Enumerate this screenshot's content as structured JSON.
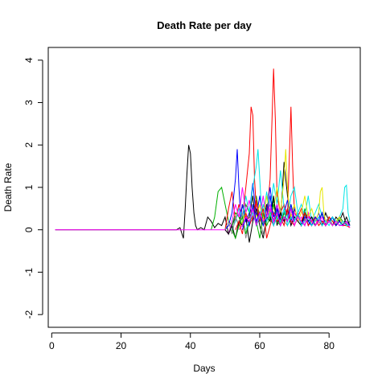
{
  "chart_data": {
    "type": "line",
    "title": "Death Rate per day",
    "xlabel": "Days",
    "ylabel": "Death Rate",
    "xlim": [
      -1,
      89
    ],
    "ylim": [
      -2.3,
      4.3
    ],
    "x_ticks": [
      0,
      20,
      40,
      60,
      80
    ],
    "y_ticks": [
      -2,
      -1,
      0,
      1,
      2,
      3,
      4
    ],
    "x_tick_labels": [
      "0",
      "20",
      "40",
      "60",
      "80"
    ],
    "y_tick_labels": [
      "-2",
      "-1",
      "0",
      "1",
      "2",
      "3",
      "4"
    ],
    "grid": false,
    "legend": "none",
    "series": [
      {
        "color": "#000000",
        "x": [
          1,
          36,
          37,
          38,
          38.5,
          39,
          39.5,
          40,
          40.5,
          41,
          41.5,
          42,
          43,
          44,
          45,
          46,
          47,
          48,
          49,
          50,
          51,
          52,
          53,
          54,
          55,
          56,
          57,
          58,
          59,
          60,
          61,
          62,
          63,
          64,
          65,
          66,
          67,
          68,
          69,
          70,
          71,
          72,
          73,
          74,
          75,
          76,
          77,
          78,
          79,
          80,
          81,
          82,
          83,
          84,
          85,
          86
        ],
        "y": [
          0,
          0,
          0.05,
          -0.2,
          0.5,
          1.3,
          2.0,
          1.8,
          1.0,
          0.4,
          0.1,
          0,
          0.05,
          0,
          0.3,
          0.2,
          0.05,
          0.15,
          0.1,
          0.3,
          -0.1,
          0.1,
          0.3,
          0.1,
          0.6,
          0.2,
          0.3,
          0.8,
          0.1,
          0.4,
          0.2,
          0.6,
          0.3,
          0.1,
          0.5,
          0.2,
          1.6,
          0.8,
          0.3,
          0.2,
          0.4,
          0.1,
          0.3,
          0.2,
          0.1,
          0.3,
          0.2,
          0.1,
          0.4,
          0.2,
          0.1,
          0.3,
          0.2,
          0.4,
          0.1,
          0.2
        ]
      },
      {
        "color": "#00b000",
        "x": [
          46,
          47,
          48,
          49,
          50,
          51,
          52,
          53,
          54,
          55,
          56,
          57,
          58,
          59,
          60,
          61,
          62,
          63,
          64,
          65,
          66,
          67,
          68,
          69,
          70,
          71,
          72,
          73,
          74,
          75,
          76,
          77,
          78,
          79,
          80,
          81,
          82,
          83,
          84,
          85,
          86
        ],
        "y": [
          0,
          0.3,
          0.9,
          1.0,
          0.6,
          0.2,
          0.1,
          0.4,
          0.3,
          0.1,
          0.6,
          0.4,
          0.2,
          0.8,
          0.3,
          0.1,
          0.5,
          0.2,
          0.7,
          0.3,
          0.1,
          0.4,
          0.2,
          0.6,
          0.3,
          0.2,
          0.1,
          0.5,
          0.2,
          0.3,
          0.1,
          0.2,
          0.4,
          0.1,
          0.3,
          0.2,
          0.1,
          0.3,
          0.2,
          0.1,
          0.2
        ]
      },
      {
        "color": "#ff0000",
        "x": [
          50,
          51,
          52,
          53,
          54,
          55,
          56,
          57,
          57.5,
          58,
          58.5,
          59,
          60,
          61,
          62,
          63,
          63.5,
          64,
          64.5,
          65,
          66,
          67,
          68,
          68.5,
          69,
          69.5,
          70,
          71,
          72,
          73,
          74,
          75,
          76,
          77,
          78,
          79,
          80,
          81,
          82,
          83,
          84,
          85,
          86
        ],
        "y": [
          0,
          0.5,
          0.9,
          0.2,
          0.6,
          0.3,
          1.0,
          1.8,
          2.9,
          2.7,
          1.2,
          0.5,
          0.2,
          0.6,
          0.3,
          1.2,
          2.5,
          3.8,
          2.6,
          0.8,
          0.4,
          0.6,
          0.3,
          1.6,
          2.9,
          1.5,
          0.4,
          0.3,
          0.5,
          0.2,
          0.4,
          0.1,
          0.3,
          0.2,
          0.4,
          0.1,
          0.3,
          0.2,
          0.1,
          0.2,
          0.1,
          0.2,
          0.1
        ]
      },
      {
        "color": "#0000ff",
        "x": [
          50,
          51,
          52,
          53,
          53.5,
          54,
          54.5,
          55,
          56,
          57,
          58,
          59,
          60,
          61,
          62,
          63,
          64,
          65,
          66,
          67,
          68,
          69,
          70,
          71,
          72,
          73,
          74,
          75,
          76,
          77,
          78,
          79,
          80,
          81,
          82,
          83,
          84,
          85,
          86
        ],
        "y": [
          0,
          0.1,
          0.4,
          1.2,
          1.9,
          1.0,
          0.3,
          0.6,
          0.2,
          0.4,
          1.1,
          0.3,
          0.8,
          0.2,
          0.5,
          1.0,
          0.3,
          0.6,
          0.2,
          0.4,
          0.7,
          0.2,
          0.5,
          0.3,
          0.2,
          0.4,
          0.1,
          0.3,
          0.2,
          0.4,
          0.1,
          0.2,
          0.3,
          0.1,
          0.2,
          0.3,
          0.1,
          0.2,
          0.1
        ]
      },
      {
        "color": "#00e5e5",
        "x": [
          52,
          53,
          54,
          55,
          56,
          57,
          58,
          59,
          59.5,
          60,
          60.5,
          61,
          62,
          63,
          64,
          65,
          66,
          67,
          68,
          69,
          70,
          71,
          72,
          73,
          74,
          75,
          76,
          77,
          78,
          79,
          80,
          81,
          82,
          83,
          84,
          84.5,
          85,
          85.5,
          86
        ],
        "y": [
          0,
          0.2,
          0.5,
          0.3,
          0.8,
          0.4,
          1.0,
          1.5,
          1.9,
          1.2,
          0.5,
          0.3,
          0.9,
          0.4,
          1.1,
          0.6,
          1.4,
          0.5,
          0.3,
          0.8,
          1.0,
          0.4,
          0.6,
          0.3,
          0.8,
          0.2,
          0.4,
          0.6,
          0.3,
          0.2,
          0.3,
          0.1,
          0.2,
          0.3,
          0.5,
          1.0,
          1.05,
          0.4,
          0.2
        ]
      },
      {
        "color": "#ff00ff",
        "x": [
          1,
          48,
          50,
          51,
          52,
          53,
          54,
          55,
          56,
          57,
          58,
          59,
          60,
          61,
          62,
          63,
          64,
          65,
          66,
          67,
          68,
          69,
          70,
          71,
          72,
          73,
          74,
          75,
          76,
          77,
          78,
          79,
          80,
          81,
          82,
          83,
          84,
          85,
          86
        ],
        "y": [
          0,
          0,
          0,
          -0.1,
          0.2,
          0.6,
          0.3,
          1.0,
          0.4,
          0.7,
          0.2,
          0.5,
          0.3,
          0.8,
          0.2,
          0.5,
          0.1,
          0.6,
          0.3,
          0.2,
          0.5,
          0.1,
          0.4,
          0.2,
          0.3,
          0.1,
          0.4,
          0.2,
          0.1,
          0.3,
          0.2,
          0.1,
          0.3,
          0.1,
          0.2,
          0.1,
          0.2,
          0.1,
          0.1
        ]
      },
      {
        "color": "#e6e600",
        "x": [
          54,
          55,
          56,
          57,
          58,
          59,
          60,
          61,
          62,
          63,
          64,
          65,
          66,
          67,
          67.5,
          68,
          68.5,
          69,
          70,
          71,
          72,
          73,
          74,
          75,
          76,
          77,
          77.5,
          78,
          78.5,
          79,
          80,
          81,
          82,
          83,
          84,
          85,
          86
        ],
        "y": [
          0,
          0.2,
          0.4,
          0.1,
          0.5,
          0.3,
          0.6,
          0.2,
          0.8,
          0.3,
          0.5,
          1.0,
          0.4,
          1.2,
          1.9,
          1.0,
          0.5,
          0.3,
          0.6,
          0.2,
          0.4,
          0.8,
          0.3,
          0.5,
          0.2,
          0.4,
          0.9,
          1.0,
          0.4,
          0.2,
          0.3,
          0.1,
          0.2,
          0.3,
          0.1,
          0.2,
          0.1
        ]
      },
      {
        "color": "#8c8c8c",
        "x": [
          50,
          51,
          52,
          53,
          54,
          55,
          56,
          57,
          58,
          59,
          60,
          61,
          62,
          63,
          64,
          65,
          66,
          67,
          68,
          69,
          70,
          71,
          72,
          73,
          74,
          75,
          76,
          77,
          78,
          79,
          80,
          81,
          82,
          83,
          84,
          85,
          86
        ],
        "y": [
          0,
          0.2,
          -0.1,
          0.3,
          0.1,
          0.4,
          -0.2,
          0.2,
          0.5,
          0.1,
          0.3,
          -0.1,
          0.2,
          0.4,
          0.1,
          0.3,
          0.5,
          0.2,
          0.1,
          0.3,
          0.2,
          0.4,
          0.1,
          0.3,
          0.2,
          0.1,
          0.3,
          0.2,
          0.1,
          0.2,
          0.3,
          0.1,
          0.2,
          0.1,
          0.2,
          0.1,
          0.2
        ]
      },
      {
        "color": "#000000",
        "x": [
          50,
          51,
          52,
          53,
          54,
          55,
          56,
          57,
          58,
          59,
          60,
          61,
          62,
          63,
          64,
          65,
          66,
          67,
          68,
          69,
          70,
          71,
          72,
          73,
          74,
          75,
          76,
          77,
          78,
          79,
          80,
          81,
          82,
          83,
          84,
          85,
          86
        ],
        "y": [
          0,
          -0.1,
          0.1,
          -0.2,
          0.2,
          0.1,
          0.3,
          -0.3,
          0.2,
          0.5,
          0.1,
          -0.2,
          0.3,
          0.2,
          0.8,
          0.1,
          0.4,
          0.2,
          0.5,
          0.1,
          0.3,
          0.2,
          0.1,
          0.4,
          0.2,
          0.3,
          0.1,
          0.2,
          0.4,
          0.1,
          0.2,
          0.3,
          0.1,
          0.2,
          0.1,
          0.3,
          0.1
        ]
      },
      {
        "color": "#00b000",
        "x": [
          52,
          53,
          54,
          55,
          56,
          57,
          58,
          59,
          60,
          61,
          62,
          63,
          64,
          65,
          66,
          67,
          68,
          69,
          70,
          71,
          72,
          73,
          74,
          75,
          76,
          77,
          78,
          79,
          80,
          81,
          82,
          83,
          84,
          85,
          86
        ],
        "y": [
          0,
          -0.2,
          0.1,
          0.3,
          -0.1,
          0.2,
          0.5,
          0.2,
          -0.2,
          0.4,
          0.1,
          0.3,
          0.6,
          0.2,
          0.1,
          0.4,
          0.2,
          0.5,
          0.1,
          0.3,
          0.2,
          0.1,
          0.3,
          0.2,
          0.1,
          0.2,
          0.4,
          0.1,
          0.2,
          0.3,
          0.1,
          0.2,
          0.1,
          0.2,
          0.1
        ]
      },
      {
        "color": "#ff0000",
        "x": [
          53,
          54,
          55,
          56,
          57,
          58,
          59,
          60,
          61,
          62,
          63,
          64,
          65,
          66,
          67,
          68,
          69,
          70,
          71,
          72,
          73,
          74,
          75,
          76,
          77,
          78,
          79,
          80,
          81,
          82,
          83,
          84,
          85,
          86
        ],
        "y": [
          0,
          0.2,
          -0.1,
          0.4,
          0.1,
          0.3,
          0.7,
          0.2,
          0.5,
          -0.2,
          0.1,
          0.4,
          0.2,
          0.3,
          0.1,
          0.5,
          0.2,
          0.1,
          0.3,
          0.2,
          0.4,
          0.1,
          0.2,
          0.3,
          0.1,
          0.2,
          0.1,
          0.3,
          0.2,
          0.1,
          0.2,
          0.1,
          0.1,
          0.05
        ]
      },
      {
        "color": "#0000ff",
        "x": [
          55,
          56,
          57,
          58,
          59,
          60,
          61,
          62,
          63,
          64,
          65,
          66,
          67,
          68,
          69,
          70,
          71,
          72,
          73,
          74,
          75,
          76,
          77,
          78,
          79,
          80,
          81,
          82,
          83,
          84,
          85,
          86
        ],
        "y": [
          0,
          0.3,
          0.1,
          0.6,
          0.2,
          0.4,
          0.1,
          0.3,
          0.8,
          0.2,
          0.5,
          0.1,
          0.3,
          0.2,
          0.6,
          0.2,
          0.4,
          0.1,
          0.3,
          0.2,
          0.1,
          0.3,
          0.2,
          0.4,
          0.1,
          0.2,
          0.3,
          0.1,
          0.2,
          0.1,
          0.2,
          0.1
        ]
      },
      {
        "color": "#00e5e5",
        "x": [
          56,
          57,
          58,
          59,
          60,
          61,
          62,
          63,
          64,
          65,
          66,
          67,
          68,
          69,
          70,
          71,
          72,
          73,
          74,
          75,
          76,
          77,
          78,
          79,
          80,
          81,
          82,
          83,
          84,
          85,
          86
        ],
        "y": [
          0,
          0.2,
          0.4,
          0.1,
          0.3,
          0.6,
          0.2,
          0.4,
          0.1,
          0.3,
          0.2,
          0.5,
          0.1,
          0.3,
          0.2,
          0.4,
          0.1,
          0.2,
          0.3,
          0.1,
          0.2,
          0.3,
          0.1,
          0.2,
          0.1,
          0.3,
          0.2,
          0.1,
          0.2,
          0.1,
          0.1
        ]
      },
      {
        "color": "#ff00ff",
        "x": [
          54,
          55,
          56,
          57,
          58,
          59,
          60,
          61,
          62,
          63,
          64,
          65,
          66,
          67,
          68,
          69,
          70,
          71,
          72,
          73,
          74,
          75,
          76,
          77,
          78,
          79,
          80,
          81,
          82,
          83,
          84,
          85,
          86
        ],
        "y": [
          0,
          0.1,
          0.3,
          0.2,
          0.5,
          0.1,
          0.4,
          0.2,
          0.3,
          0.6,
          0.2,
          0.4,
          0.1,
          0.3,
          0.2,
          0.5,
          0.1,
          0.3,
          0.2,
          0.1,
          0.3,
          0.2,
          0.1,
          0.2,
          0.3,
          0.1,
          0.2,
          0.1,
          0.2,
          0.1,
          0.1,
          0.2,
          0.05
        ]
      }
    ]
  }
}
